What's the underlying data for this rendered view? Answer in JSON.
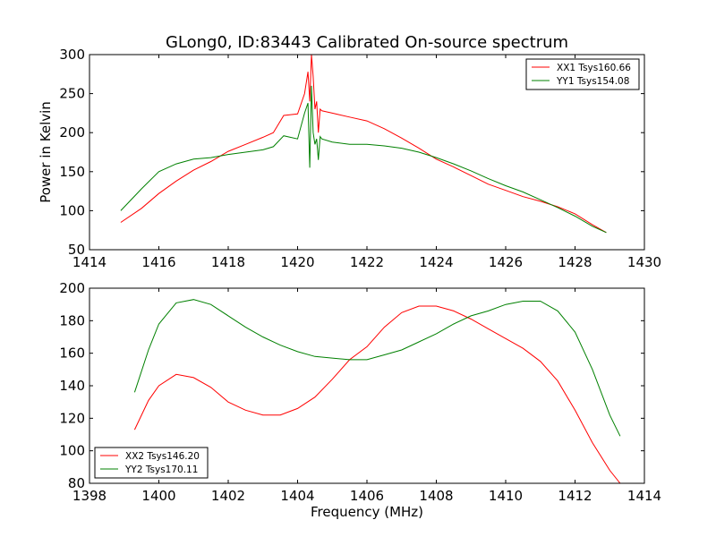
{
  "chart_data": [
    {
      "type": "line",
      "title": "GLong0, ID:83443 Calibrated On-source spectrum",
      "xlabel": "",
      "ylabel": "Power in Kelvin",
      "xlim": [
        1414,
        1430
      ],
      "ylim": [
        50,
        300
      ],
      "xticks": [
        "1414",
        "1416",
        "1418",
        "1420",
        "1422",
        "1424",
        "1426",
        "1428",
        "1430"
      ],
      "yticks": [
        "50",
        "100",
        "150",
        "200",
        "250",
        "300"
      ],
      "legend": "top-right",
      "grid": false,
      "series": [
        {
          "name": "XX1 Tsys160.66",
          "color": "#ff0000",
          "x": [
            1414.9,
            1415.5,
            1416.0,
            1416.5,
            1417.0,
            1417.5,
            1418.0,
            1418.5,
            1419.0,
            1419.3,
            1419.6,
            1420.0,
            1420.2,
            1420.3,
            1420.35,
            1420.4,
            1420.45,
            1420.5,
            1420.55,
            1420.6,
            1420.65,
            1420.7,
            1421.0,
            1421.5,
            1422.0,
            1422.5,
            1423.0,
            1423.5,
            1424.0,
            1424.5,
            1425.0,
            1425.5,
            1426.0,
            1426.5,
            1427.0,
            1427.5,
            1428.0,
            1428.5,
            1428.9
          ],
          "y": [
            85,
            103,
            122,
            138,
            152,
            163,
            176,
            185,
            194,
            200,
            222,
            224,
            250,
            278,
            240,
            300,
            272,
            230,
            240,
            200,
            230,
            228,
            225,
            220,
            215,
            205,
            193,
            180,
            166,
            156,
            145,
            134,
            126,
            118,
            112,
            105,
            96,
            82,
            72
          ]
        },
        {
          "name": "YY1 Tsys154.08",
          "color": "#008000",
          "x": [
            1414.9,
            1415.5,
            1416.0,
            1416.5,
            1417.0,
            1417.5,
            1418.0,
            1418.5,
            1419.0,
            1419.3,
            1419.6,
            1420.0,
            1420.2,
            1420.3,
            1420.35,
            1420.4,
            1420.45,
            1420.5,
            1420.55,
            1420.6,
            1420.65,
            1420.7,
            1421.0,
            1421.5,
            1422.0,
            1422.5,
            1423.0,
            1423.5,
            1424.0,
            1424.5,
            1425.0,
            1425.5,
            1426.0,
            1426.5,
            1427.0,
            1427.5,
            1428.0,
            1428.5,
            1428.9
          ],
          "y": [
            100,
            128,
            150,
            160,
            166,
            168,
            172,
            175,
            178,
            182,
            196,
            192,
            225,
            238,
            155,
            260,
            200,
            185,
            192,
            165,
            195,
            192,
            188,
            185,
            185,
            183,
            180,
            175,
            168,
            160,
            151,
            141,
            132,
            124,
            114,
            104,
            93,
            80,
            72
          ]
        }
      ]
    },
    {
      "type": "line",
      "title": "",
      "xlabel": "Frequency (MHz)",
      "ylabel": "",
      "xlim": [
        1398,
        1414
      ],
      "ylim": [
        80,
        200
      ],
      "xticks": [
        "1398",
        "1400",
        "1402",
        "1404",
        "1406",
        "1408",
        "1410",
        "1412",
        "1414"
      ],
      "yticks": [
        "80",
        "100",
        "120",
        "140",
        "160",
        "180",
        "200"
      ],
      "legend": "bottom-left",
      "grid": false,
      "series": [
        {
          "name": "XX2 Tsys146.20",
          "color": "#ff0000",
          "x": [
            1399.3,
            1399.7,
            1400.0,
            1400.5,
            1401.0,
            1401.5,
            1402.0,
            1402.5,
            1403.0,
            1403.5,
            1404.0,
            1404.5,
            1405.0,
            1405.5,
            1406.0,
            1406.5,
            1407.0,
            1407.5,
            1408.0,
            1408.5,
            1409.0,
            1409.5,
            1410.0,
            1410.5,
            1411.0,
            1411.5,
            1412.0,
            1412.5,
            1413.0,
            1413.3
          ],
          "y": [
            113,
            131,
            140,
            147,
            145,
            139,
            130,
            125,
            122,
            122,
            126,
            133,
            144,
            156,
            164,
            176,
            185,
            189,
            189,
            186,
            181,
            175,
            169,
            163,
            155,
            143,
            125,
            105,
            88,
            80
          ]
        },
        {
          "name": "YY2 Tsys170.11",
          "color": "#008000",
          "x": [
            1399.3,
            1399.7,
            1400.0,
            1400.5,
            1401.0,
            1401.5,
            1402.0,
            1402.5,
            1403.0,
            1403.5,
            1404.0,
            1404.5,
            1405.0,
            1405.5,
            1406.0,
            1406.5,
            1407.0,
            1407.5,
            1408.0,
            1408.5,
            1409.0,
            1409.5,
            1410.0,
            1410.5,
            1411.0,
            1411.5,
            1412.0,
            1412.5,
            1413.0,
            1413.3
          ],
          "y": [
            136,
            162,
            178,
            191,
            193,
            190,
            183,
            176,
            170,
            165,
            161,
            158,
            157,
            156,
            156,
            159,
            162,
            167,
            172,
            178,
            183,
            186,
            190,
            192,
            192,
            186,
            173,
            150,
            122,
            109
          ]
        }
      ]
    }
  ]
}
